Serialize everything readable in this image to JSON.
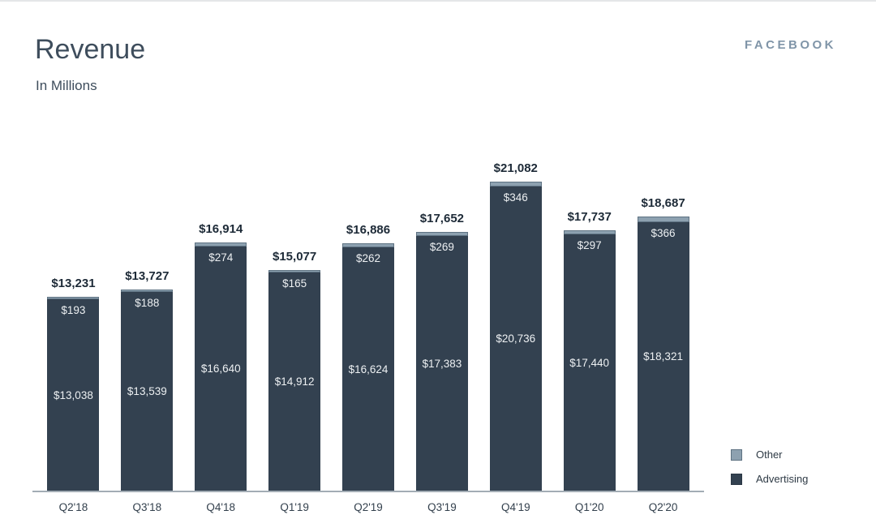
{
  "header": {
    "title": "Revenue",
    "subtitle": "In Millions",
    "brand": "FACEBOOK"
  },
  "legend": {
    "items": [
      {
        "label": "Other",
        "color": "#8da1b0",
        "border": "#5e7282"
      },
      {
        "label": "Advertising",
        "color": "#334150",
        "border": "#2b3744"
      }
    ]
  },
  "chart_data": {
    "type": "bar",
    "stacked": true,
    "title": "Revenue",
    "subtitle": "In Millions",
    "categories": [
      "Q2'18",
      "Q3'18",
      "Q4'18",
      "Q1'19",
      "Q2'19",
      "Q3'19",
      "Q4'19",
      "Q1'20",
      "Q2'20"
    ],
    "series": [
      {
        "name": "Advertising",
        "color": "#334150",
        "values": [
          13038,
          13539,
          16640,
          14912,
          16624,
          17383,
          20736,
          17440,
          18321
        ],
        "labels": [
          "$13,038",
          "$13,539",
          "$16,640",
          "$14,912",
          "$16,624",
          "$17,383",
          "$20,736",
          "$17,440",
          "$18,321"
        ]
      },
      {
        "name": "Other",
        "color": "#8da1b0",
        "values": [
          193,
          188,
          274,
          165,
          262,
          269,
          346,
          297,
          366
        ],
        "labels": [
          "$193",
          "$188",
          "$274",
          "$165",
          "$262",
          "$269",
          "$346",
          "$297",
          "$366"
        ]
      }
    ],
    "totals": [
      13231,
      13727,
      16914,
      15077,
      16886,
      17652,
      21082,
      17737,
      18687
    ],
    "total_labels": [
      "$13,231",
      "$13,727",
      "$16,914",
      "$15,077",
      "$16,886",
      "$17,652",
      "$21,082",
      "$17,737",
      "$18,687"
    ],
    "ylim": [
      0,
      21082
    ],
    "grid": false,
    "legend_position": "bottom-right",
    "xlabel": "",
    "ylabel": ""
  },
  "colors": {
    "advertising": "#334150",
    "other": "#8da1b0",
    "axis": "#a3adb5",
    "title_text": "#3e4d5c",
    "total_label_text": "#1d2a37",
    "brand_text": "#8095a8"
  }
}
